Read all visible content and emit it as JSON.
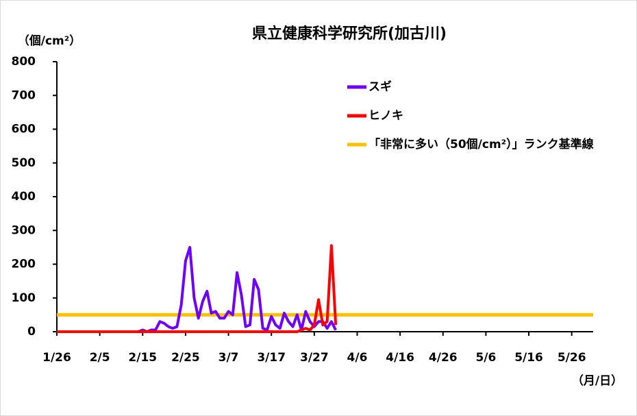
{
  "chart_data": {
    "type": "line",
    "title": "県立健康科学研究所(加古川)",
    "y_label": "（個/cm²）",
    "x_label": "（月/日）",
    "x": [
      0,
      1,
      2,
      3,
      4,
      5,
      6,
      7,
      8,
      9,
      10,
      11,
      12,
      13,
      14,
      15,
      16,
      17,
      18,
      19,
      20,
      21,
      22,
      23,
      24,
      25,
      26,
      27,
      28,
      29,
      30,
      31,
      32,
      33,
      34,
      35,
      36,
      37,
      38,
      39,
      40,
      41,
      42,
      43,
      44,
      45,
      46,
      47,
      48,
      49,
      50,
      51,
      52,
      53,
      54,
      55,
      56,
      57,
      58,
      59,
      60,
      61,
      62,
      63,
      64,
      65
    ],
    "series": [
      {
        "name": "スギ",
        "color": "#6f00ff",
        "values": [
          0,
          0,
          0,
          0,
          0,
          0,
          0,
          0,
          0,
          0,
          0,
          0,
          0,
          0,
          0,
          0,
          0,
          0,
          0,
          0,
          5,
          0,
          5,
          5,
          30,
          25,
          15,
          10,
          15,
          80,
          210,
          250,
          100,
          40,
          90,
          120,
          55,
          60,
          40,
          40,
          60,
          50,
          175,
          110,
          15,
          20,
          155,
          125,
          10,
          5,
          45,
          20,
          10,
          55,
          30,
          15,
          50,
          5,
          60,
          30,
          15,
          30,
          30,
          10,
          30,
          5
        ]
      },
      {
        "name": "ヒノキ",
        "color": "#ff0000",
        "values": [
          0,
          0,
          0,
          0,
          0,
          0,
          0,
          0,
          0,
          0,
          0,
          0,
          0,
          0,
          0,
          0,
          0,
          0,
          0,
          0,
          0,
          0,
          0,
          0,
          0,
          0,
          0,
          0,
          0,
          0,
          0,
          0,
          0,
          0,
          0,
          0,
          0,
          0,
          0,
          0,
          0,
          0,
          0,
          0,
          0,
          0,
          0,
          0,
          0,
          0,
          0,
          0,
          0,
          0,
          0,
          0,
          0,
          5,
          10,
          5,
          20,
          95,
          20,
          30,
          255,
          20
        ]
      }
    ],
    "reference_line": {
      "name": "「非常に多い（50個/cm²）」ランク基準線",
      "value": 50,
      "color": "#ffc000"
    },
    "xlim": [
      0,
      125
    ],
    "xticks": [
      {
        "value": 0,
        "label": "1/26"
      },
      {
        "value": 10,
        "label": "2/5"
      },
      {
        "value": 20,
        "label": "2/15"
      },
      {
        "value": 30,
        "label": "2/25"
      },
      {
        "value": 40,
        "label": "3/7"
      },
      {
        "value": 50,
        "label": "3/17"
      },
      {
        "value": 60,
        "label": "3/27"
      },
      {
        "value": 70,
        "label": "4/6"
      },
      {
        "value": 80,
        "label": "4/16"
      },
      {
        "value": 90,
        "label": "4/26"
      },
      {
        "value": 100,
        "label": "5/6"
      },
      {
        "value": 110,
        "label": "5/16"
      },
      {
        "value": 120,
        "label": "5/26"
      }
    ],
    "ylim": [
      0,
      800
    ],
    "yticks": [
      0,
      100,
      200,
      300,
      400,
      500,
      600,
      700,
      800
    ]
  }
}
